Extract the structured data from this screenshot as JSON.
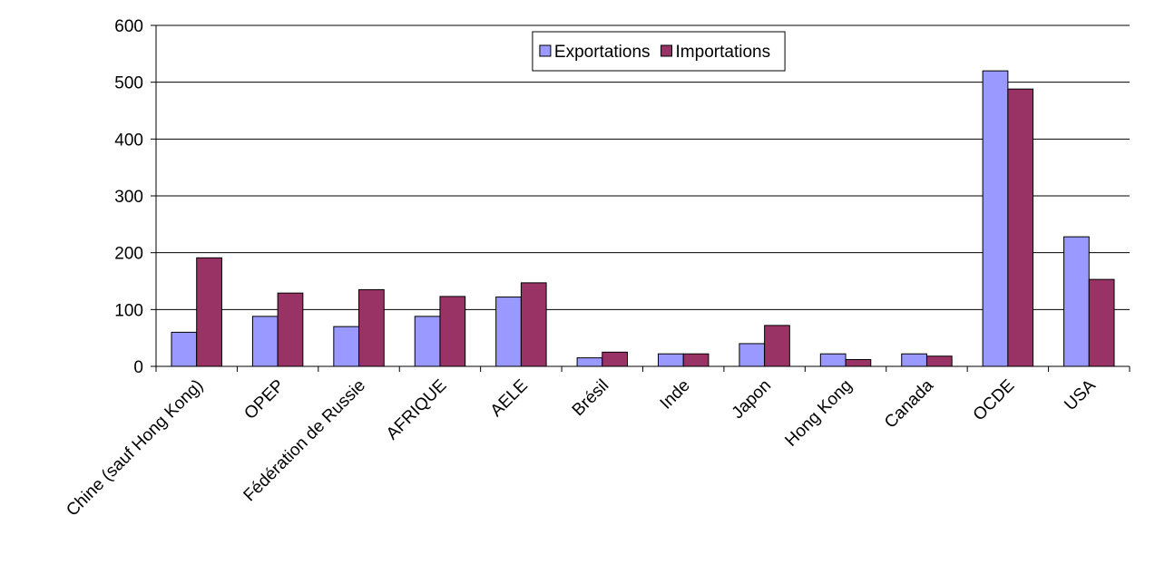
{
  "chart_data": {
    "type": "bar",
    "categories": [
      "Chine (sauf Hong Kong)",
      "OPEP",
      "Fédération de Russie",
      "AFRIQUE",
      "AELE",
      "Brésil",
      "Inde",
      "Japon",
      "Hong Kong",
      "Canada",
      "OCDE",
      "USA"
    ],
    "series": [
      {
        "name": "Exportations",
        "color": "#9999ff",
        "values": [
          60,
          88,
          70,
          88,
          122,
          15,
          22,
          40,
          22,
          22,
          520,
          228
        ]
      },
      {
        "name": "Importations",
        "color": "#993366",
        "values": [
          191,
          129,
          135,
          123,
          147,
          25,
          22,
          72,
          12,
          18,
          488,
          153
        ]
      }
    ],
    "ylim": [
      0,
      600
    ],
    "yticks": [
      0,
      100,
      200,
      300,
      400,
      500,
      600
    ],
    "grid": true,
    "legend": "top"
  }
}
